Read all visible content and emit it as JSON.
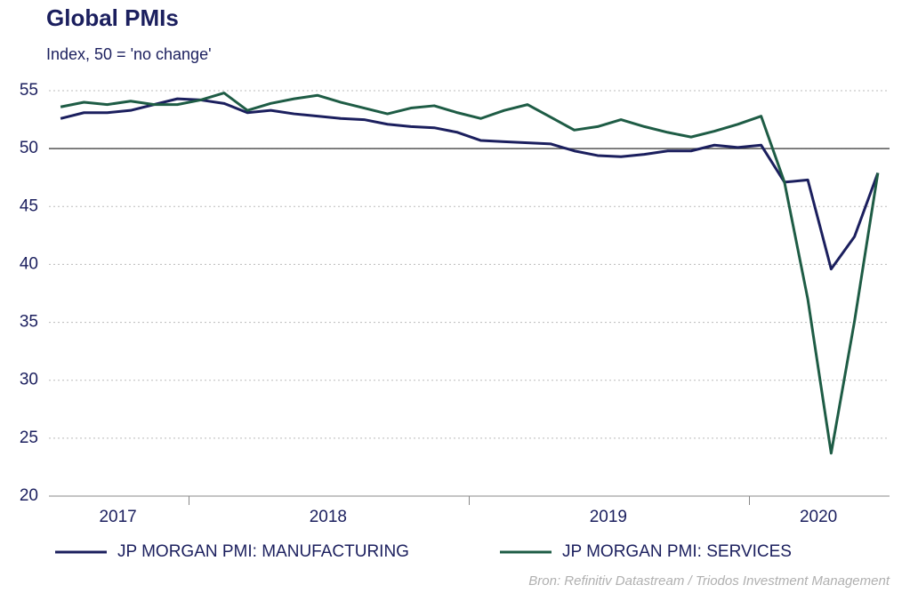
{
  "chart_data": {
    "type": "line",
    "title": "Global PMIs",
    "subtitle": "Index, 50 = 'no change'",
    "categories": [
      null,
      null,
      "2017",
      null,
      null,
      null,
      null,
      null,
      null,
      null,
      null,
      "2018",
      null,
      null,
      null,
      null,
      null,
      null,
      null,
      null,
      null,
      null,
      null,
      "2019",
      null,
      null,
      null,
      null,
      null,
      null,
      null,
      null,
      "2020",
      null,
      null,
      null
    ],
    "series": [
      {
        "name": "JP MORGAN PMI: MANUFACTURING",
        "color": "#1b1f5e",
        "values": [
          52.6,
          53.1,
          53.1,
          53.3,
          53.8,
          54.3,
          54.2,
          53.9,
          53.1,
          53.3,
          53.0,
          52.8,
          52.6,
          52.5,
          52.1,
          51.9,
          51.8,
          51.4,
          50.7,
          50.6,
          50.5,
          50.4,
          49.8,
          49.4,
          49.3,
          49.5,
          49.8,
          49.8,
          50.3,
          50.1,
          50.3,
          47.1,
          47.3,
          39.6,
          42.4,
          47.9
        ]
      },
      {
        "name": "JP MORGAN PMI: SERVICES",
        "color": "#1e5c45",
        "values": [
          53.6,
          54.0,
          53.8,
          54.1,
          53.8,
          53.8,
          54.2,
          54.8,
          53.3,
          53.9,
          54.3,
          54.6,
          54.0,
          53.5,
          53.0,
          53.5,
          53.7,
          53.1,
          52.6,
          53.3,
          53.8,
          52.7,
          51.6,
          51.9,
          52.5,
          51.9,
          51.4,
          51.0,
          51.5,
          52.1,
          52.8,
          47.1,
          37.0,
          23.7,
          35.1,
          47.9
        ]
      }
    ],
    "ylim": [
      20,
      55
    ],
    "yticks": [
      20,
      25,
      30,
      35,
      40,
      45,
      50,
      55
    ],
    "grid": true,
    "reference_line": 50,
    "legend": "bottom",
    "source": "Bron: Refinitiv Datastream / Triodos Investment Management"
  }
}
